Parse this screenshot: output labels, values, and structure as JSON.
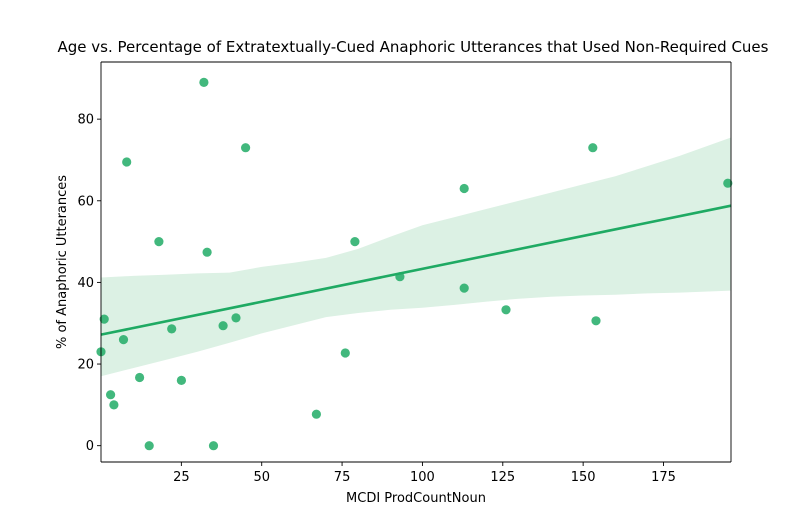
{
  "chart_data": {
    "type": "scatter",
    "title": "Age vs. Percentage of Extratextually-Cued Anaphoric Utterances that Used Non-Required Cues",
    "xlabel": "MCDI ProdCountNoun",
    "ylabel": "% of Anaphoric Utterances",
    "xlim": [
      0,
      196
    ],
    "ylim": [
      -4,
      94
    ],
    "x_ticks": [
      25,
      50,
      75,
      100,
      125,
      150,
      175
    ],
    "y_ticks": [
      0,
      20,
      40,
      60,
      80
    ],
    "x_tick_labels": [
      "25",
      "50",
      "75",
      "100",
      "125",
      "150",
      "175"
    ],
    "y_tick_labels": [
      "0",
      "20",
      "40",
      "60",
      "80"
    ],
    "grid": false,
    "colors": {
      "points": "#21ab66",
      "line": "#1faa63",
      "band": "#dcf1e4"
    },
    "points": [
      {
        "x": 0,
        "y": 23
      },
      {
        "x": 1,
        "y": 31
      },
      {
        "x": 3,
        "y": 12.5
      },
      {
        "x": 4,
        "y": 10
      },
      {
        "x": 7,
        "y": 26
      },
      {
        "x": 8,
        "y": 69.5
      },
      {
        "x": 12,
        "y": 16.7
      },
      {
        "x": 15,
        "y": 0
      },
      {
        "x": 18,
        "y": 50
      },
      {
        "x": 22,
        "y": 28.6
      },
      {
        "x": 25,
        "y": 16
      },
      {
        "x": 32,
        "y": 89
      },
      {
        "x": 33,
        "y": 47.4
      },
      {
        "x": 35,
        "y": 0
      },
      {
        "x": 38,
        "y": 29.4
      },
      {
        "x": 42,
        "y": 31.3
      },
      {
        "x": 45,
        "y": 73
      },
      {
        "x": 67,
        "y": 7.7
      },
      {
        "x": 76,
        "y": 22.7
      },
      {
        "x": 79,
        "y": 50
      },
      {
        "x": 93,
        "y": 41.4
      },
      {
        "x": 113,
        "y": 63
      },
      {
        "x": 113,
        "y": 38.6
      },
      {
        "x": 126,
        "y": 33.3
      },
      {
        "x": 153,
        "y": 73
      },
      {
        "x": 154,
        "y": 30.6
      },
      {
        "x": 195,
        "y": 64.3
      }
    ],
    "regression": {
      "x": [
        0,
        196
      ],
      "y": [
        27.2,
        58.8
      ]
    },
    "confidence_band": {
      "x": [
        0,
        10,
        20,
        30,
        40,
        50,
        60,
        70,
        80,
        90,
        100,
        110,
        120,
        130,
        140,
        150,
        160,
        170,
        180,
        196
      ],
      "upper": [
        41.2,
        41.6,
        41.9,
        42.2,
        42.4,
        43.8,
        44.8,
        46.0,
        48.2,
        51.2,
        54.0,
        56.0,
        58.0,
        60.0,
        62.0,
        64.0,
        66.0,
        68.5,
        71.0,
        75.5
      ],
      "lower": [
        17.0,
        19.0,
        21.0,
        23.0,
        25.2,
        27.5,
        29.5,
        31.5,
        32.5,
        33.3,
        33.8,
        34.5,
        35.3,
        36.0,
        36.5,
        36.8,
        37.0,
        37.3,
        37.5,
        38.0
      ]
    }
  }
}
